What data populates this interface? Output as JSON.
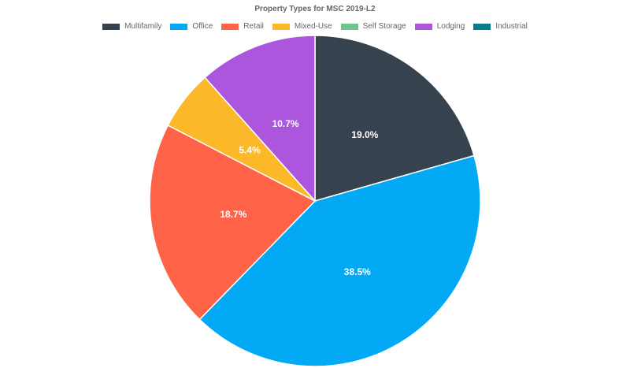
{
  "chart_data": {
    "type": "pie",
    "title": "Property Types for MSC 2019-L2",
    "legend_position": "top",
    "legend": [
      {
        "name": "Multifamily",
        "color": "#36434f"
      },
      {
        "name": "Office",
        "color": "#03a9f4"
      },
      {
        "name": "Retail",
        "color": "#ff6347"
      },
      {
        "name": "Mixed-Use",
        "color": "#fbb829"
      },
      {
        "name": "Self Storage",
        "color": "#6fc68b"
      },
      {
        "name": "Lodging",
        "color": "#ab56dc"
      },
      {
        "name": "Industrial",
        "color": "#087e8b"
      }
    ],
    "slices": [
      {
        "name": "Multifamily",
        "value": 19.0,
        "label": "19.0%",
        "color": "#36434f"
      },
      {
        "name": "Office",
        "value": 38.5,
        "label": "38.5%",
        "color": "#03a9f4"
      },
      {
        "name": "Retail",
        "value": 18.7,
        "label": "18.7%",
        "color": "#ff6347"
      },
      {
        "name": "Mixed-Use",
        "value": 5.4,
        "label": "5.4%",
        "color": "#fbb829"
      },
      {
        "name": "Lodging",
        "value": 10.7,
        "label": "10.7%",
        "color": "#ab56dc"
      }
    ]
  }
}
